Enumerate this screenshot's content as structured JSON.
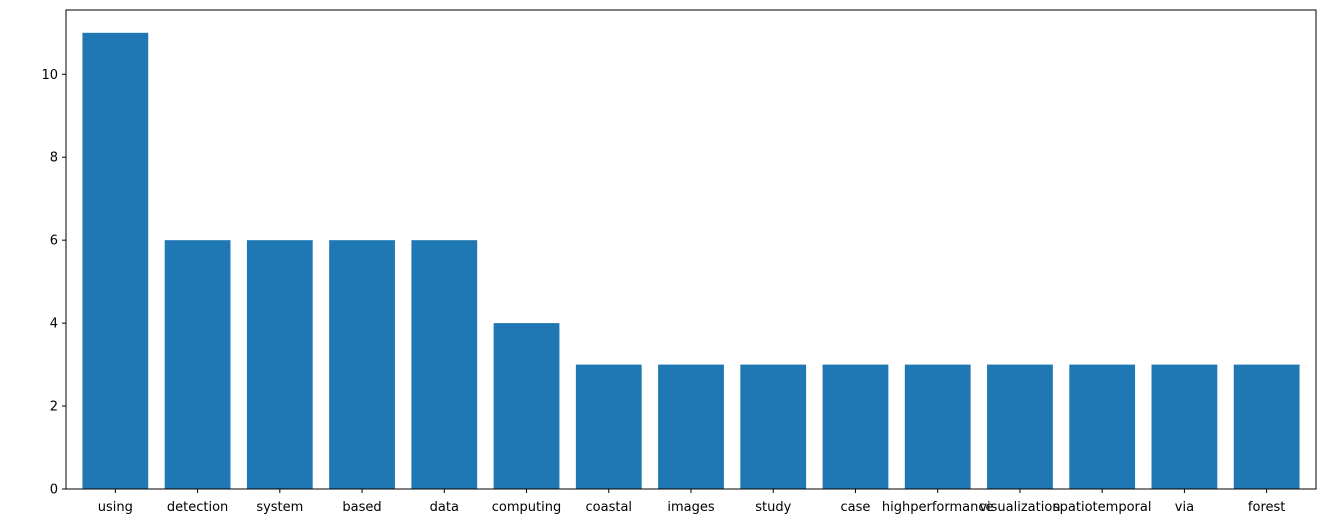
{
  "chart_data": {
    "type": "bar",
    "title": "",
    "xlabel": "",
    "ylabel": "",
    "categories": [
      "using",
      "detection",
      "system",
      "based",
      "data",
      "computing",
      "coastal",
      "images",
      "study",
      "case",
      "highperformance",
      "visualization",
      "spatiotemporal",
      "via",
      "forest"
    ],
    "values": [
      11,
      6,
      6,
      6,
      6,
      4,
      3,
      3,
      3,
      3,
      3,
      3,
      3,
      3,
      3
    ],
    "ylim": [
      0,
      11.55
    ],
    "yticks": [
      0,
      2,
      4,
      6,
      8,
      10
    ],
    "grid": false,
    "bar_color": "#1f77b4"
  }
}
